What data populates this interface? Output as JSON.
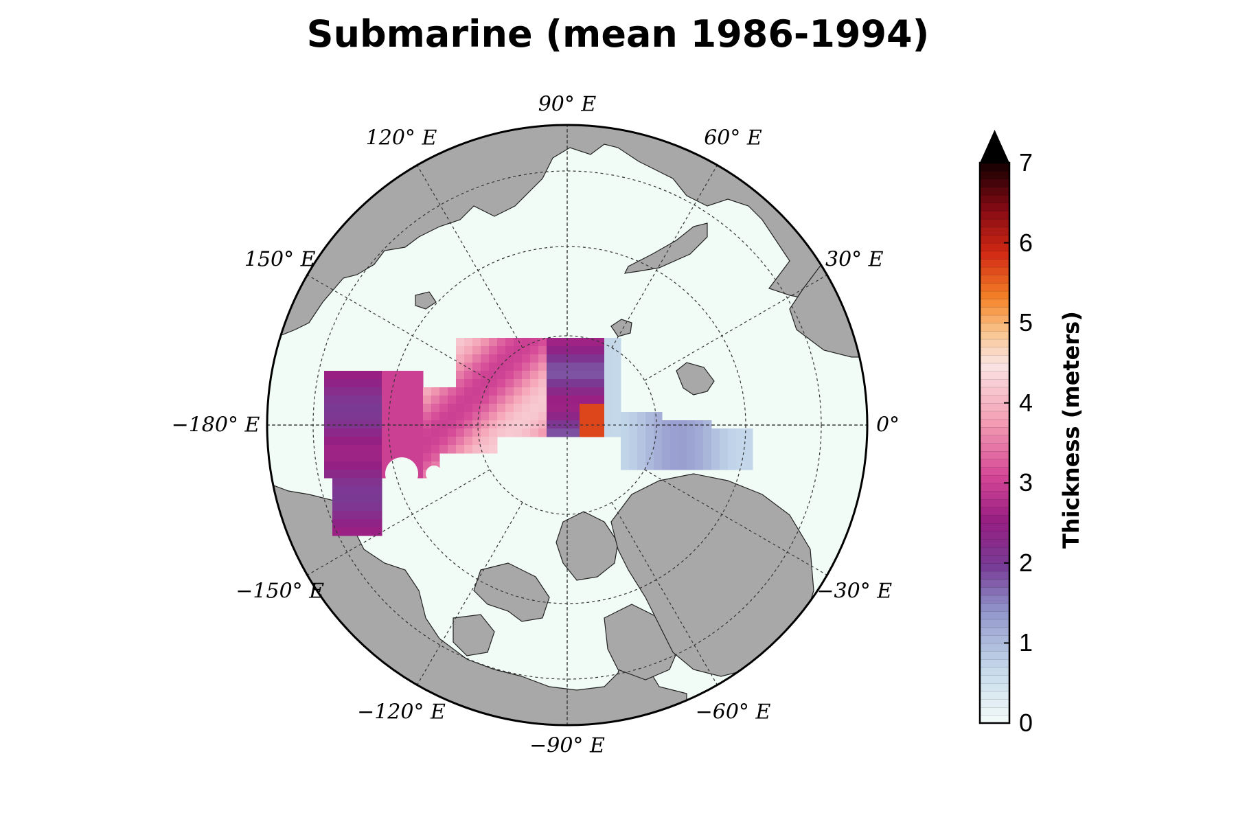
{
  "title": "Submarine (mean 1986-1994)",
  "map": {
    "projection": "north-polar-stereographic",
    "lon_labels": [
      {
        "key": "90",
        "text": "90° E"
      },
      {
        "key": "60",
        "text": "60° E"
      },
      {
        "key": "30",
        "text": "30° E"
      },
      {
        "key": "0",
        "text": "0°"
      },
      {
        "key": "-30",
        "text": "−30° E"
      },
      {
        "key": "-60",
        "text": "−60° E"
      },
      {
        "key": "-90",
        "text": "−90° E"
      },
      {
        "key": "-120",
        "text": "−120° E"
      },
      {
        "key": "-150",
        "text": "−150° E"
      },
      {
        "key": "-180",
        "text": "−180° E"
      },
      {
        "key": "150",
        "text": "150° E"
      },
      {
        "key": "120",
        "text": "120° E"
      }
    ],
    "colors": {
      "ocean": "#f2fcf7",
      "land": "#a8a8a8",
      "coast": "#222222",
      "grid": "#333333"
    }
  },
  "colorbar": {
    "label": "Thickness (meters)",
    "ticks": [
      "0",
      "1",
      "2",
      "3",
      "4",
      "5",
      "6",
      "7"
    ],
    "vmin": 0,
    "vmax": 7,
    "extend": "max"
  }
}
